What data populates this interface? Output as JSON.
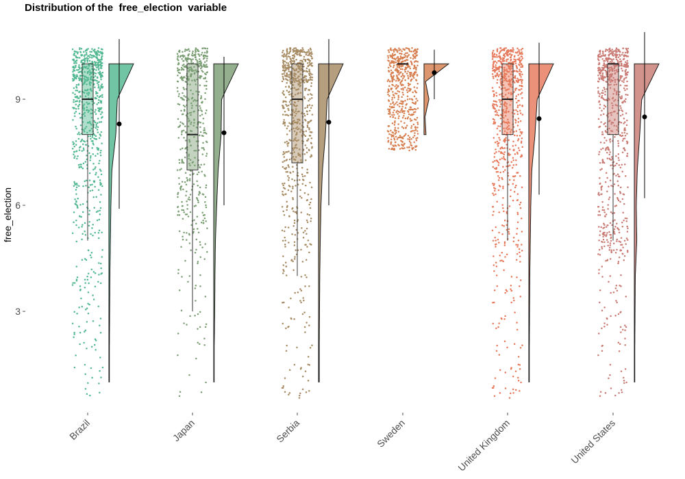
{
  "chart_data": {
    "type": "raincloud",
    "title": "Distribution of the  free_election  variable",
    "xlabel": "",
    "ylabel": "free_election",
    "ylim": [
      0.2,
      10.9
    ],
    "y_ticks": [
      3,
      6,
      9
    ],
    "grid": false,
    "legend": "none",
    "categories": [
      "Brazil",
      "Japan",
      "Serbia",
      "Sweden",
      "United Kingdom",
      "United States"
    ],
    "series": [
      {
        "color": "#52b891",
        "box": {
          "q1": 8,
          "median": 9,
          "q3": 10,
          "whisker_low": 5,
          "whisker_high": 10
        },
        "mean": 8.3,
        "mean_ci": [
          5.9,
          10.7
        ],
        "range": [
          1,
          10
        ],
        "density": [
          [
            1,
            0.02
          ],
          [
            2,
            0.02
          ],
          [
            3,
            0.03
          ],
          [
            4,
            0.04
          ],
          [
            5,
            0.06
          ],
          [
            6,
            0.08
          ],
          [
            7,
            0.12
          ],
          [
            8,
            0.28
          ],
          [
            9,
            0.34
          ],
          [
            10,
            1.0
          ]
        ],
        "jitter_density": [
          [
            1,
            0.07
          ],
          [
            2,
            0.05
          ],
          [
            3,
            0.05
          ],
          [
            4,
            0.08
          ],
          [
            5,
            0.14
          ],
          [
            6,
            0.12
          ],
          [
            7,
            0.2
          ],
          [
            8,
            0.35
          ],
          [
            9,
            0.5
          ],
          [
            10,
            1.0
          ]
        ],
        "n_points": 760
      },
      {
        "color": "#7b9e74",
        "box": {
          "q1": 7,
          "median": 8,
          "q3": 10,
          "whisker_low": 3,
          "whisker_high": 10
        },
        "mean": 8.05,
        "mean_ci": [
          6.0,
          10.2
        ],
        "range": [
          1,
          10
        ],
        "density": [
          [
            1,
            0.02
          ],
          [
            2,
            0.02
          ],
          [
            3,
            0.04
          ],
          [
            4,
            0.05
          ],
          [
            5,
            0.07
          ],
          [
            6,
            0.12
          ],
          [
            7,
            0.18
          ],
          [
            8,
            0.3
          ],
          [
            9,
            0.32
          ],
          [
            10,
            1.0
          ]
        ],
        "jitter_density": [
          [
            1,
            0.03
          ],
          [
            2,
            0.03
          ],
          [
            3,
            0.05
          ],
          [
            4,
            0.08
          ],
          [
            5,
            0.1
          ],
          [
            6,
            0.22
          ],
          [
            7,
            0.25
          ],
          [
            8,
            0.36
          ],
          [
            9,
            0.42
          ],
          [
            10,
            1.0
          ]
        ],
        "n_points": 560
      },
      {
        "color": "#a68a62",
        "box": {
          "q1": 7.2,
          "median": 9,
          "q3": 10,
          "whisker_low": 4,
          "whisker_high": 10
        },
        "mean": 8.35,
        "mean_ci": [
          6.0,
          10.7
        ],
        "range": [
          1,
          10
        ],
        "density": [
          [
            1,
            0.03
          ],
          [
            2,
            0.03
          ],
          [
            3,
            0.04
          ],
          [
            4,
            0.05
          ],
          [
            5,
            0.07
          ],
          [
            6,
            0.1
          ],
          [
            7,
            0.16
          ],
          [
            8,
            0.28
          ],
          [
            9,
            0.35
          ],
          [
            10,
            1.0
          ]
        ],
        "jitter_density": [
          [
            1,
            0.06
          ],
          [
            2,
            0.05
          ],
          [
            3,
            0.06
          ],
          [
            4,
            0.08
          ],
          [
            5,
            0.12
          ],
          [
            6,
            0.16
          ],
          [
            7,
            0.22
          ],
          [
            8,
            0.38
          ],
          [
            9,
            0.5
          ],
          [
            10,
            1.0
          ]
        ],
        "n_points": 760
      },
      {
        "color": "#d67e4e",
        "box": {
          "q1": 10,
          "median": 10,
          "q3": 10,
          "whisker_low": 10,
          "whisker_high": 10
        },
        "mean": 9.75,
        "mean_ci": [
          9.0,
          10.4
        ],
        "range": [
          8,
          10
        ],
        "density": [
          [
            8,
            0.08
          ],
          [
            8.5,
            0.04
          ],
          [
            9,
            0.2
          ],
          [
            9.5,
            0.06
          ],
          [
            10,
            1.0
          ]
        ],
        "jitter_density": [
          [
            8,
            0.6
          ],
          [
            9,
            0.55
          ],
          [
            10,
            1.0
          ]
        ],
        "n_points": 560
      },
      {
        "color": "#e7795b",
        "box": {
          "q1": 8,
          "median": 9,
          "q3": 10,
          "whisker_low": 5,
          "whisker_high": 10
        },
        "mean": 8.45,
        "mean_ci": [
          6.3,
          10.6
        ],
        "range": [
          1,
          10
        ],
        "density": [
          [
            1,
            0.02
          ],
          [
            2,
            0.02
          ],
          [
            3,
            0.03
          ],
          [
            4,
            0.04
          ],
          [
            5,
            0.06
          ],
          [
            6,
            0.08
          ],
          [
            7,
            0.12
          ],
          [
            8,
            0.25
          ],
          [
            9,
            0.34
          ],
          [
            10,
            1.0
          ]
        ],
        "jitter_density": [
          [
            1,
            0.07
          ],
          [
            2,
            0.06
          ],
          [
            3,
            0.06
          ],
          [
            4,
            0.1
          ],
          [
            5,
            0.14
          ],
          [
            6,
            0.14
          ],
          [
            7,
            0.2
          ],
          [
            8,
            0.35
          ],
          [
            9,
            0.52
          ],
          [
            10,
            1.0
          ]
        ],
        "n_points": 760
      },
      {
        "color": "#c97b74",
        "box": {
          "q1": 8,
          "median": 10,
          "q3": 10,
          "whisker_low": 5,
          "whisker_high": 10
        },
        "mean": 8.5,
        "mean_ci": [
          6.2,
          10.9
        ],
        "range": [
          1,
          10
        ],
        "density": [
          [
            1,
            0.02
          ],
          [
            2,
            0.02
          ],
          [
            3,
            0.03
          ],
          [
            4,
            0.04
          ],
          [
            5,
            0.1
          ],
          [
            6,
            0.08
          ],
          [
            7,
            0.12
          ],
          [
            8,
            0.22
          ],
          [
            9,
            0.3
          ],
          [
            10,
            1.0
          ]
        ],
        "jitter_density": [
          [
            1,
            0.06
          ],
          [
            2,
            0.05
          ],
          [
            3,
            0.06
          ],
          [
            4,
            0.08
          ],
          [
            5,
            0.25
          ],
          [
            6,
            0.14
          ],
          [
            7,
            0.18
          ],
          [
            8,
            0.3
          ],
          [
            9,
            0.45
          ],
          [
            10,
            1.0
          ]
        ],
        "n_points": 760
      }
    ]
  }
}
